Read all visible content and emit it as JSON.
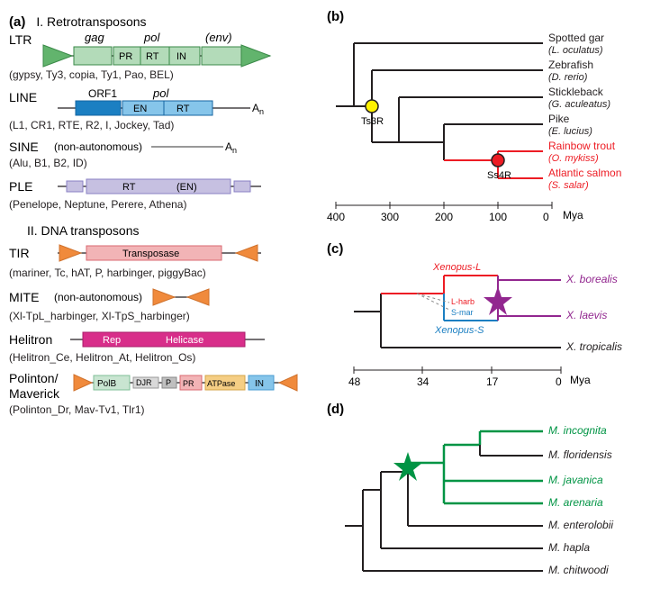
{
  "panel_a": {
    "label": "(a)",
    "section1_title": "I. Retrotransposons",
    "section2_title": "II. DNA transposons",
    "ltr": {
      "label": "LTR",
      "genes": {
        "gag": "gag",
        "pol": "pol",
        "env": "(env)"
      },
      "domains": {
        "pr": "PR",
        "rt": "RT",
        "in": "IN"
      },
      "examples": "(gypsy, Ty3, copia, Ty1, Pao, BEL)",
      "colors": {
        "triangle": "#62b46d",
        "gag_fill": "#b3dbb9",
        "pol_fill": "#b3dbb9",
        "env_fill": "#b3dbb9",
        "stroke": "#3a8a48",
        "line": "#231f20"
      }
    },
    "line": {
      "label": "LINE",
      "genes": {
        "orf1": "ORF1",
        "pol": "pol"
      },
      "domains": {
        "en": "EN",
        "rt": "RT"
      },
      "tail": "An",
      "examples": "(L1, CR1, RTE, R2, I, Jockey, Tad)",
      "colors": {
        "orf1_fill": "#1b7fc2",
        "pol_fill": "#86c5ea",
        "stroke": "#1565a2",
        "line": "#231f20"
      }
    },
    "sine": {
      "label": "SINE",
      "nonauto": "(non-autonomous)",
      "tail": "An",
      "examples": "(Alu, B1, B2, ID)",
      "colors": {
        "line": "#5b5b5b"
      }
    },
    "ple": {
      "label": "PLE",
      "domains": {
        "rt": "RT",
        "en": "(EN)"
      },
      "examples": "(Penelope, Neptune, Perere, Athena)",
      "colors": {
        "fill": "#c6c0e1",
        "stroke": "#8a80c4",
        "line": "#231f20"
      }
    },
    "tir": {
      "label": "TIR",
      "gene": "Transposase",
      "examples": "(mariner, Tc, hAT, P, harbinger, piggyBac)",
      "colors": {
        "triangle": "#f08a3c",
        "fill": "#f2b4b6",
        "stroke": "#d96a72",
        "line": "#231f20"
      }
    },
    "mite": {
      "label": "MITE",
      "nonauto": "(non-autonomous)",
      "examples": "(Xl-TpL_harbinger, Xl-TpS_harbinger)",
      "colors": {
        "triangle": "#f08a3c",
        "line": "#231f20"
      }
    },
    "helitron": {
      "label": "Helitron",
      "domains": {
        "rep": "Rep",
        "hel": "Helicase"
      },
      "examples": "(Helitron_Ce, Helitron_At, Helitron_Os)",
      "colors": {
        "fill": "#d82e8a",
        "stroke": "#a81c6a",
        "line": "#231f20",
        "text": "#ffffff"
      }
    },
    "polinton": {
      "label": "Polinton/\nMaverick",
      "domains": {
        "polb": "PolB",
        "djr": "DJR",
        "p": "P",
        "pr": "PR",
        "atp": "ATPase",
        "in": "IN"
      },
      "examples": "(Polinton_Dr, Mav-Tv1, Tlr1)",
      "colors": {
        "triangle": "#f08a3c",
        "polb": "#c9e5d1",
        "polb_s": "#7fbf97",
        "djr": "#d9d9d9",
        "djr_s": "#999999",
        "p": "#bfbfbf",
        "p_s": "#888888",
        "pr": "#f2b4b6",
        "pr_s": "#d96a72",
        "atp": "#f5ce84",
        "atp_s": "#d4a648",
        "in": "#86c5ea",
        "in_s": "#4a9cd1",
        "line": "#231f20"
      }
    }
  },
  "panel_b": {
    "label": "(b)",
    "species": [
      {
        "common": "Spotted gar",
        "latin": "(L. oculatus)",
        "color": "#231f20"
      },
      {
        "common": "Zebrafish",
        "latin": "(D. rerio)",
        "color": "#231f20"
      },
      {
        "common": "Stickleback",
        "latin": "(G. aculeatus)",
        "color": "#231f20"
      },
      {
        "common": "Pike",
        "latin": "(E. lucius)",
        "color": "#231f20"
      },
      {
        "common": "Rainbow trout",
        "latin": "(O. mykiss)",
        "color": "#ed1c24"
      },
      {
        "common": "Atlantic salmon",
        "latin": "(S. salar)",
        "color": "#ed1c24"
      }
    ],
    "events": {
      "ts3r": {
        "label": "Ts3R",
        "color": "#fff200",
        "stroke": "#231f20"
      },
      "ss4r": {
        "label": "Ss4R",
        "color": "#ed1c24",
        "stroke": "#231f20"
      }
    },
    "axis": {
      "ticks": [
        "400",
        "300",
        "200",
        "100",
        "0"
      ],
      "unit": "Mya"
    },
    "tree_color": "#231f20",
    "salmon_color": "#ed1c24"
  },
  "panel_c": {
    "label": "(c)",
    "species": [
      {
        "name": "X. borealis",
        "color": "#92278f"
      },
      {
        "name": "X. laevis",
        "color": "#92278f"
      },
      {
        "name": "X. tropicalis",
        "color": "#231f20"
      }
    ],
    "sublabels": {
      "xenL": "Xenopus-L",
      "xenS": "Xenopus-S",
      "lharb": "L-harb",
      "smar": "S-mar"
    },
    "axis": {
      "ticks": [
        "48",
        "34",
        "17",
        "0"
      ],
      "unit": "Mya"
    },
    "colors": {
      "l": "#ed1c24",
      "s": "#1b7fc2",
      "star": "#92278f",
      "tree": "#231f20",
      "dash": "#888888"
    }
  },
  "panel_d": {
    "label": "(d)",
    "species": [
      {
        "name": "M. incognita",
        "color": "#009444"
      },
      {
        "name": "M. floridensis",
        "color": "#231f20"
      },
      {
        "name": "M. javanica",
        "color": "#009444"
      },
      {
        "name": "M. arenaria",
        "color": "#009444"
      },
      {
        "name": "M. enterolobii",
        "color": "#231f20"
      },
      {
        "name": "M. hapla",
        "color": "#231f20"
      },
      {
        "name": "M. chitwoodi",
        "color": "#231f20"
      }
    ],
    "colors": {
      "star": "#009444",
      "tree": "#231f20",
      "poly": "#009444"
    }
  }
}
